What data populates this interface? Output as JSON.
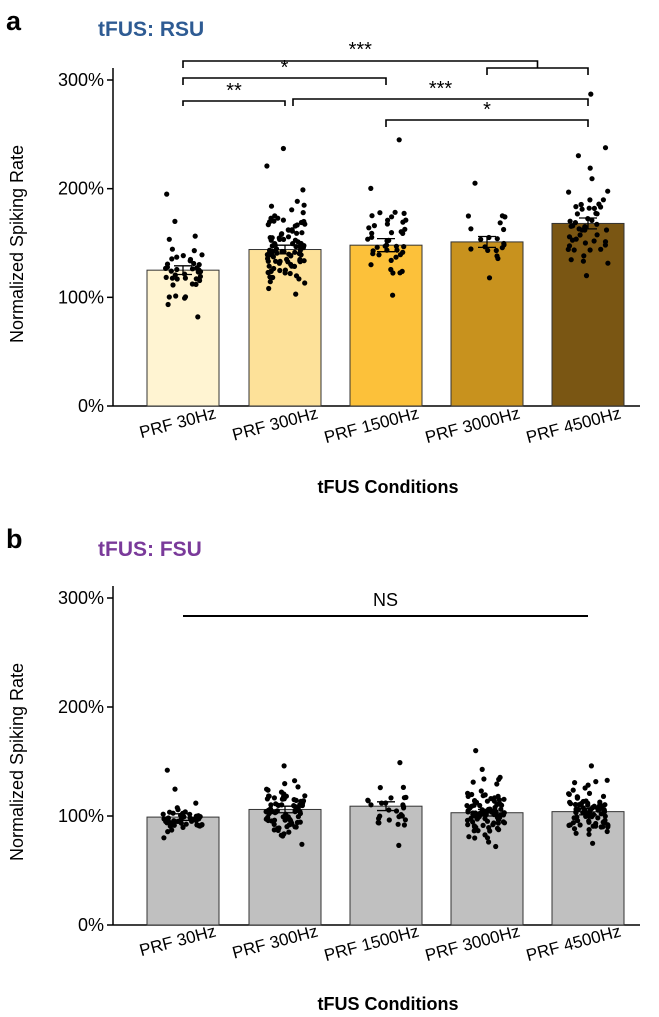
{
  "chart_data": [
    {
      "type": "bar",
      "panel": "a",
      "title": "tFUS: RSU",
      "title_color": "#2e5b93",
      "xlabel": "tFUS Conditions",
      "ylabel": "Normalized Spiking Rate",
      "ylim": [
        0,
        300
      ],
      "yticks": [
        "0%",
        "100%",
        "200%",
        "300%"
      ],
      "categories": [
        "PRF 30Hz",
        "PRF 300Hz",
        "PRF 1500Hz",
        "PRF 3000Hz",
        "PRF 4500Hz"
      ],
      "values": [
        125,
        144,
        148,
        151,
        168
      ],
      "errors": [
        4,
        4,
        6,
        5,
        5
      ],
      "bar_colors": [
        "#fff4d2",
        "#fde199",
        "#fcc13a",
        "#c8921e",
        "#7a5613"
      ],
      "points_per_condition": [
        42,
        95,
        42,
        20,
        52
      ],
      "point_ranges": [
        [
          82,
          195
        ],
        [
          103,
          237
        ],
        [
          102,
          245
        ],
        [
          118,
          205
        ],
        [
          120,
          287
        ]
      ],
      "significance": [
        {
          "from": 0,
          "to": 1,
          "label": "**"
        },
        {
          "from": 0,
          "to": 2,
          "label": "*"
        },
        {
          "from": 0,
          "to": 4,
          "label": "***"
        },
        {
          "from": 1,
          "to": 4,
          "label": "***"
        },
        {
          "from": 2,
          "to": 4,
          "label": "*"
        }
      ]
    },
    {
      "type": "bar",
      "panel": "b",
      "title": "tFUS: FSU",
      "title_color": "#7a3a9a",
      "xlabel": "tFUS Conditions",
      "ylabel": "Normalized Spiking Rate",
      "ylim": [
        0,
        300
      ],
      "yticks": [
        "0%",
        "100%",
        "200%",
        "300%"
      ],
      "categories": [
        "PRF 30Hz",
        "PRF 300Hz",
        "PRF 1500Hz",
        "PRF 3000Hz",
        "PRF 4500Hz"
      ],
      "values": [
        99,
        106,
        109,
        103,
        104
      ],
      "errors": [
        3,
        3,
        4,
        3,
        3
      ],
      "bar_colors": [
        "#c0c0c0",
        "#c0c0c0",
        "#c0c0c0",
        "#c0c0c0",
        "#c0c0c0"
      ],
      "points_per_condition": [
        48,
        85,
        28,
        95,
        85
      ],
      "point_ranges": [
        [
          80,
          142
        ],
        [
          74,
          146
        ],
        [
          73,
          149
        ],
        [
          72,
          160
        ],
        [
          75,
          146
        ]
      ],
      "significance_label": "NS"
    }
  ]
}
